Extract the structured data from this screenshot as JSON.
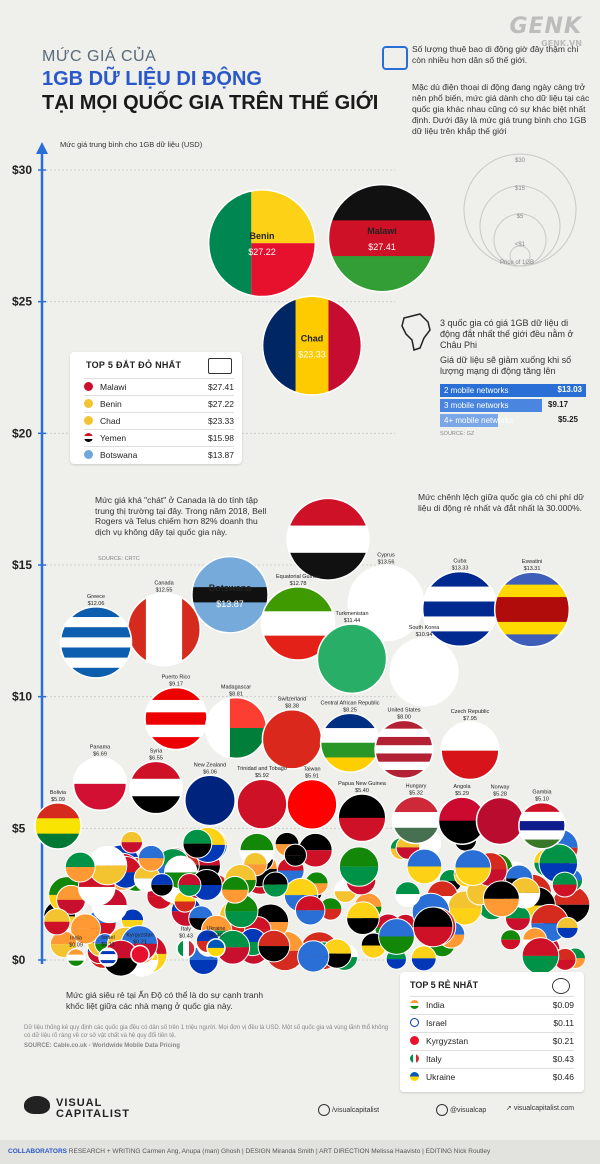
{
  "header": {
    "title_line1": "MỨC GIÁ CỦA",
    "title_line2": "1GB DỮ LIỆU DI ĐỘNG",
    "title_line3": "TẠI MỌI QUỐC GIA TRÊN THẾ GIỚI",
    "genk": "GENK",
    "genk_sub": "GENK.VN"
  },
  "intro": {
    "line1": "Số lượng thuê bao di động giờ đây thậm chí còn nhiều hơn dân số thế giới.",
    "line2": "Mặc dù điện thoại di động đang ngày càng trở nên phổ biến, mức giá dành cho dữ liệu tại các quốc gia khác nhau cũng có sự khác biệt nhất định. Dưới đây là mức giá trung bình cho 1GB dữ liệu trên khắp thế giới"
  },
  "scale_legend": {
    "labels": [
      "$30",
      "$15",
      "$5",
      "<$1"
    ],
    "caption": "Price of 1GB"
  },
  "top5_expensive": {
    "title": "TOP 5 ĐẮT ĐỎ NHẤT",
    "rows": [
      {
        "name": "Malawi",
        "value": "$27.41"
      },
      {
        "name": "Benin",
        "value": "$27.22"
      },
      {
        "name": "Chad",
        "value": "$23.33"
      },
      {
        "name": "Yemen",
        "value": "$15.98"
      },
      {
        "name": "Botswana",
        "value": "$13.87"
      }
    ]
  },
  "africa_note": {
    "text1": "3 quốc gia có giá 1GB dữ liệu di động đắt nhất thế giới đều nằm ở Châu Phi",
    "text2": "Giá dữ liệu sẽ giảm xuống khi số lượng mạng di động tăng lên",
    "networks": [
      {
        "label": "2 mobile networks",
        "value": "$13.03"
      },
      {
        "label": "3 mobile networks",
        "value": "$9.17"
      },
      {
        "label": "4+ mobile networks",
        "value": "$5.25"
      }
    ],
    "source": "SOURCE: GZ"
  },
  "notes": {
    "canada": "Mức giá khá \"chát\" ở Canada là do tính tập trung thị trường tại đây. Trong năm 2018, Bell Rogers và Telus chiếm hơn 82% doanh thu dịch vụ không dây tại quốc gia này.",
    "canada_source": "SOURCE: CRTC",
    "gap": "Mức chênh lệch giữa quốc gia có chi phí dữ liệu di động rẻ nhất và đắt nhất là 30.000%.",
    "india": "Mức giá siêu rẻ tại Ấn Độ có thể là do sự cạnh tranh khốc liệt giữa các nhà mạng ở quốc gia này."
  },
  "top5_cheapest": {
    "title": "TOP 5 RẺ NHẤT",
    "rows": [
      {
        "name": "India",
        "value": "$0.09"
      },
      {
        "name": "Israel",
        "value": "$0.11"
      },
      {
        "name": "Kyrgyzstan",
        "value": "$0.21"
      },
      {
        "name": "Italy",
        "value": "$0.43"
      },
      {
        "name": "Ukraine",
        "value": "$0.46"
      }
    ]
  },
  "footer": {
    "disclaimer": "Dữ liệu thống kê quy định các quốc gia đều có dân số trên 1 triệu người. Mọi đơn vị đều là USD. Một số quốc gia và vùng lãnh thổ không có dữ liệu rõ ràng về cơ sở vật chất và hệ quy đổi tiền tệ.",
    "source": "SOURCE: Cable.co.uk - Worldwide Mobile Data Pricing",
    "brand_line1": "VISUAL",
    "brand_line2": "CAPITALIST",
    "social1": "/visualcapitalist",
    "social2": "@visualcap",
    "social3": "visualcapitalist.com",
    "collab_label": "COLLABORATORS",
    "collab_text": "RESEARCH + WRITING Carmen Ang, Anupa (man) Ghosh  |  DESIGN Miranda Smith  |  ART DIRECTION Melissa Haavisto  |  EDITING Nick Routley"
  },
  "chart_data": {
    "type": "scatter",
    "title": "MỨC GIÁ CỦA 1GB DỮ LIỆU DI ĐỘNG TẠI MỌI QUỐC GIA TRÊN THẾ GIỚI",
    "ylabel": "Mức giá trung bình cho 1GB dữ liệu (USD)",
    "ylim": [
      0,
      30
    ],
    "yticks": [
      "$0",
      "$5",
      "$10",
      "$15",
      "$20",
      "$25",
      "$30"
    ],
    "grid": true,
    "colors": {
      "axis": "#2a6fd6",
      "grid": "#c8c8c4",
      "accent": "#2a58c8"
    },
    "points": [
      {
        "name": "Malawi",
        "value": 27.41,
        "label": "$27.41",
        "flag": "malawi"
      },
      {
        "name": "Benin",
        "value": 27.22,
        "label": "$27.22",
        "flag": "benin"
      },
      {
        "name": "Chad",
        "value": 23.33,
        "label": "$23.33",
        "flag": "chad"
      },
      {
        "name": "Yemen",
        "value": 15.98,
        "label": "$15.98",
        "flag": "yemen"
      },
      {
        "name": "Botswana",
        "value": 13.87,
        "label": "$13.87",
        "flag": "botswana"
      },
      {
        "name": "Cyprus",
        "value": 13.56,
        "label": "$13.56",
        "flag": "cyprus"
      },
      {
        "name": "Cuba",
        "value": 13.33,
        "label": "$13.33",
        "flag": "cuba"
      },
      {
        "name": "Eswatini",
        "value": 13.31,
        "label": "$13.31",
        "flag": "eswatini"
      },
      {
        "name": "Equatorial Guinea",
        "value": 12.78,
        "label": "$12.78",
        "flag": "eqguinea"
      },
      {
        "name": "Canada",
        "value": 12.55,
        "label": "$12.55",
        "flag": "canada"
      },
      {
        "name": "Greece",
        "value": 12.06,
        "label": "$12.06",
        "flag": "greece"
      },
      {
        "name": "Turkmenistan",
        "value": 11.44,
        "label": "$11.44",
        "flag": "turkmenistan"
      },
      {
        "name": "South Korea",
        "value": 10.94,
        "label": "$10.94",
        "flag": "korea"
      },
      {
        "name": "Puerto Rico",
        "value": 9.17,
        "label": "$9.17",
        "flag": "puertorico"
      },
      {
        "name": "Madagascar",
        "value": 8.81,
        "label": "$8.81",
        "flag": "madagascar"
      },
      {
        "name": "Switzerland",
        "value": 8.38,
        "label": "$8.38",
        "flag": "switzerland"
      },
      {
        "name": "Central African Republic",
        "value": 8.25,
        "label": "$8.25",
        "flag": "car"
      },
      {
        "name": "United States",
        "value": 8.0,
        "label": "$8.00",
        "flag": "usa"
      },
      {
        "name": "Czech Republic",
        "value": 7.95,
        "label": "$7.95",
        "flag": "czech"
      },
      {
        "name": "Panama",
        "value": 6.69,
        "label": "$6.69",
        "flag": "panama"
      },
      {
        "name": "Syria",
        "value": 6.55,
        "label": "$6.55",
        "flag": "syria"
      },
      {
        "name": "New Zealand",
        "value": 6.06,
        "label": "$6.06",
        "flag": "nz"
      },
      {
        "name": "Trinidad and Tobago",
        "value": 5.92,
        "label": "$5.92",
        "flag": "trinidad"
      },
      {
        "name": "Taiwan",
        "value": 5.91,
        "label": "$5.91",
        "flag": "taiwan"
      },
      {
        "name": "Papua New Guinea",
        "value": 5.4,
        "label": "$5.40",
        "flag": "png"
      },
      {
        "name": "Hungary",
        "value": 5.32,
        "label": "$5.32",
        "flag": "hungary"
      },
      {
        "name": "Angola",
        "value": 5.29,
        "label": "$5.29",
        "flag": "angola"
      },
      {
        "name": "Norway",
        "value": 5.28,
        "label": "$5.28",
        "flag": "norway"
      },
      {
        "name": "Gambia",
        "value": 5.1,
        "label": "$5.10",
        "flag": "gambia"
      },
      {
        "name": "Bolivia",
        "value": 5.09,
        "label": "$5.09",
        "flag": "bolivia"
      },
      {
        "name": "India",
        "value": 0.09,
        "label": "$0.09",
        "flag": "india"
      },
      {
        "name": "Israel",
        "value": 0.11,
        "label": "$0.11",
        "flag": "israel"
      },
      {
        "name": "Kyrgyzstan",
        "value": 0.21,
        "label": "$0.21",
        "flag": "kyrgyzstan"
      },
      {
        "name": "Italy",
        "value": 0.43,
        "label": "$0.43",
        "flag": "italy"
      },
      {
        "name": "Ukraine",
        "value": 0.46,
        "label": "$0.46",
        "flag": "ukraine"
      }
    ]
  }
}
